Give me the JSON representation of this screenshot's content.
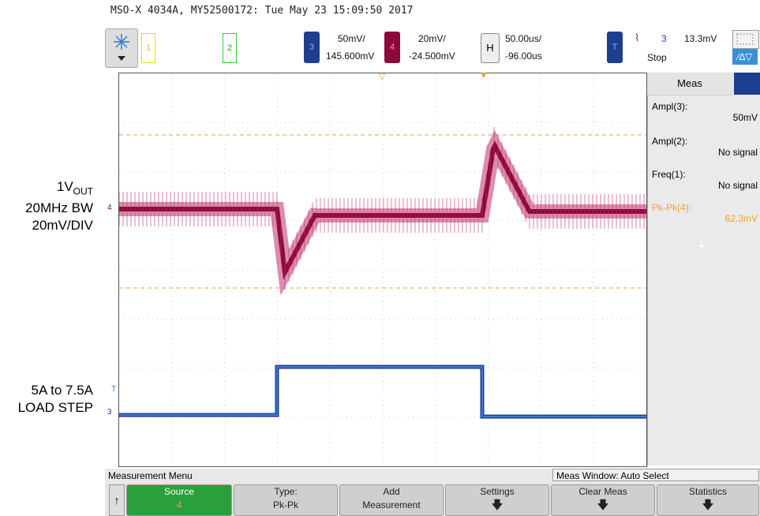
{
  "header": {
    "title": "MSO-X 4034A, MY52500172: Tue May 23 15:09:50 2017"
  },
  "channels": {
    "ch1": "1",
    "ch2": "2",
    "ch3": {
      "num": "3",
      "scale": "50mV/",
      "offset": "145.600mV"
    },
    "ch4": {
      "num": "4",
      "scale": "20mV/",
      "offset": "-24.500mV"
    },
    "horizontal": {
      "label": "H",
      "scale": "50.00us/",
      "offset": "-96.00us"
    },
    "trigger": {
      "label": "T",
      "source": "3",
      "level": "13.3mV",
      "status": "Stop"
    }
  },
  "labels": {
    "vout_line1": "1V",
    "vout_sub": "OUT",
    "vout_line2": "20MHz BW",
    "vout_line3": "20mV/DIV",
    "load_line1": "5A to 7.5A",
    "load_line2": "LOAD STEP",
    "marker4": "4",
    "marker3": "3",
    "markerT": "T"
  },
  "measurements": {
    "panel_title": "Meas",
    "items": [
      {
        "name": "Ampl(3):",
        "value": "50mV"
      },
      {
        "name": "Ampl(2):",
        "value": "No signal"
      },
      {
        "name": "Freq(1):",
        "value": "No signal"
      },
      {
        "name": "Pk-Pk(4):",
        "value": "62.3mV"
      }
    ],
    "add_symbol": "+"
  },
  "footer": {
    "menu_title": "Measurement Menu",
    "window_status": "Meas Window: Auto Select",
    "buttons": [
      {
        "line1": "Source",
        "line2": "4"
      },
      {
        "line1": "Type:",
        "line2": "Pk-Pk"
      },
      {
        "line1": "Add",
        "line2": "Measurement"
      },
      {
        "line1": "Settings",
        "line2": ""
      },
      {
        "line1": "Clear Meas",
        "line2": ""
      },
      {
        "line1": "Statistics",
        "line2": ""
      }
    ],
    "back_arrow": "↑"
  },
  "colors": {
    "ch1": "#e0e000",
    "ch2": "#33cc33",
    "ch3": "#1e3f8f",
    "ch4": "#8b0a3a",
    "trigger_ref": "#ff9900"
  }
}
